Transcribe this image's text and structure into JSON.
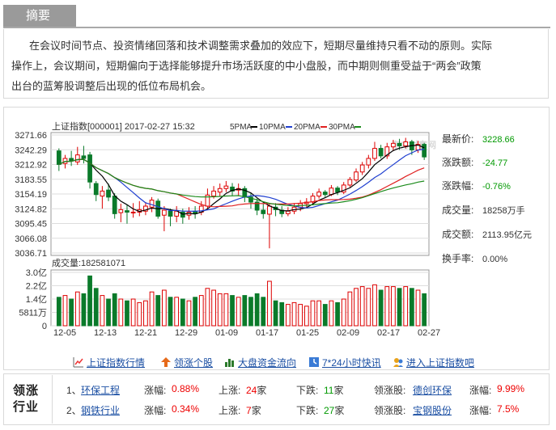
{
  "summary": {
    "tab": "摘要",
    "lines": [
      "在会议时间节点、投资情绪回落和技术调整需求叠加的效应下，短期尽量维持只看不动的原则。实际",
      "操作上，会议期间，短期偏向于选择能够提升市场活跃度的中小盘股，而中期则侧重受益于“两会”政策",
      "出台的蓝筹股调整后出现的低位布局机会。"
    ]
  },
  "chart_header": {
    "title": "上证指数[000001] 2017-02-27 15:32",
    "ma5": "5PMA",
    "ma10": "10PMA",
    "ma20": "20PMA",
    "ma30": "30PMA",
    "watermark": "东方财富网"
  },
  "quote": {
    "latest_label": "最新价:",
    "latest": "3228.66",
    "change_label": "涨跌额:",
    "change": "-24.77",
    "pct_label": "涨跌幅:",
    "pct": "-0.76%",
    "volume_label": "成交量:",
    "volume": "18258万手",
    "amount_label": "成交额:",
    "amount": "2113.95亿元",
    "turnover_label": "换手率:",
    "turnover": "0.00%"
  },
  "volume_label": "成交量:182581071",
  "chart_data": {
    "type": "candlestick",
    "price_axis": [
      "3271.66",
      "3242.29",
      "3212.92",
      "3183.55",
      "3154.19",
      "3124.82",
      "3095.45",
      "3066.08",
      "3036.71"
    ],
    "price_range": [
      3036.71,
      3271.66
    ],
    "volume_axis": [
      "3.0亿",
      "2.2亿",
      "1.4亿",
      "5811万",
      "0"
    ],
    "volume_range": [
      0,
      3.0
    ],
    "dates": [
      "12-05",
      "12-13",
      "12-21",
      "12-29",
      "01-09",
      "01-17",
      "01-25",
      "02-09",
      "02-17",
      "02-27"
    ],
    "candles": [
      [
        3240,
        3213,
        3245,
        3200,
        1.6
      ],
      [
        3215,
        3225,
        3232,
        3205,
        1.7
      ],
      [
        3225,
        3220,
        3240,
        3210,
        1.5
      ],
      [
        3218,
        3232,
        3248,
        3212,
        1.9
      ],
      [
        3230,
        3225,
        3250,
        3215,
        1.8
      ],
      [
        3232,
        3178,
        3238,
        3165,
        2.8
      ],
      [
        3175,
        3153,
        3180,
        3140,
        2.1
      ],
      [
        3150,
        3160,
        3170,
        3125,
        1.7
      ],
      [
        3162,
        3148,
        3175,
        3140,
        1.5
      ],
      [
        3150,
        3115,
        3156,
        3105,
        1.8
      ],
      [
        3117,
        3123,
        3135,
        3098,
        1.5
      ],
      [
        3121,
        3118,
        3132,
        3095,
        1.4
      ],
      [
        3118,
        3118,
        3136,
        3107,
        1.5
      ],
      [
        3118,
        3123,
        3140,
        3110,
        1.3
      ],
      [
        3120,
        3130,
        3138,
        3112,
        1.4
      ],
      [
        3128,
        3142,
        3148,
        3118,
        1.9
      ],
      [
        3140,
        3110,
        3145,
        3105,
        1.7
      ],
      [
        3112,
        3122,
        3130,
        3080,
        2.0
      ],
      [
        3120,
        3110,
        3125,
        3090,
        1.6
      ],
      [
        3110,
        3120,
        3130,
        3098,
        1.6
      ],
      [
        3118,
        3108,
        3125,
        3095,
        1.5
      ],
      [
        3112,
        3118,
        3128,
        3103,
        1.4
      ],
      [
        3120,
        3115,
        3130,
        3105,
        1.6
      ],
      [
        3118,
        3130,
        3140,
        3112,
        1.7
      ],
      [
        3130,
        3152,
        3165,
        3125,
        2.1
      ],
      [
        3150,
        3160,
        3170,
        3145,
        2.0
      ],
      [
        3158,
        3165,
        3175,
        3150,
        1.8
      ],
      [
        3165,
        3170,
        3180,
        3158,
        1.8
      ],
      [
        3168,
        3160,
        3176,
        3150,
        1.7
      ],
      [
        3162,
        3165,
        3175,
        3150,
        1.6
      ],
      [
        3165,
        3148,
        3170,
        3138,
        1.7
      ],
      [
        3148,
        3138,
        3156,
        3125,
        1.6
      ],
      [
        3138,
        3122,
        3145,
        3112,
        1.8
      ],
      [
        3122,
        3115,
        3135,
        3105,
        1.6
      ],
      [
        3114,
        3130,
        3136,
        3046,
        2.5
      ],
      [
        3128,
        3123,
        3136,
        3110,
        1.4
      ],
      [
        3122,
        3115,
        3130,
        3108,
        1.3
      ],
      [
        3115,
        3120,
        3128,
        3110,
        1.2
      ],
      [
        3120,
        3128,
        3136,
        3114,
        1.3
      ],
      [
        3128,
        3135,
        3142,
        3120,
        1.2
      ],
      [
        3135,
        3138,
        3146,
        3128,
        1.1
      ],
      [
        3138,
        3150,
        3156,
        3132,
        1.4
      ],
      [
        3150,
        3158,
        3165,
        3145,
        1.4
      ],
      [
        3158,
        3153,
        3162,
        3148,
        1.2
      ],
      [
        3153,
        3166,
        3172,
        3150,
        1.4
      ],
      [
        3166,
        3158,
        3170,
        3152,
        1.3
      ],
      [
        3158,
        3172,
        3178,
        3154,
        1.5
      ],
      [
        3172,
        3183,
        3188,
        3168,
        1.9
      ],
      [
        3182,
        3198,
        3205,
        3178,
        2.1
      ],
      [
        3198,
        3212,
        3218,
        3192,
        2.2
      ],
      [
        3212,
        3225,
        3232,
        3205,
        2.1
      ],
      [
        3225,
        3245,
        3258,
        3220,
        2.3
      ],
      [
        3245,
        3230,
        3252,
        3225,
        2.0
      ],
      [
        3230,
        3248,
        3256,
        3224,
        2.2
      ],
      [
        3248,
        3255,
        3262,
        3240,
        2.2
      ],
      [
        3255,
        3250,
        3264,
        3242,
        2.1
      ],
      [
        3250,
        3258,
        3266,
        3245,
        2.2
      ],
      [
        3258,
        3242,
        3262,
        3232,
        2.1
      ],
      [
        3242,
        3253,
        3260,
        3236,
        2.0
      ],
      [
        3253,
        3228,
        3256,
        3222,
        1.8
      ]
    ],
    "series": [
      {
        "name": "5PMA",
        "color": "#000000"
      },
      {
        "name": "10PMA",
        "color": "#1f3fd0"
      },
      {
        "name": "20PMA",
        "color": "#e02020"
      },
      {
        "name": "30PMA",
        "color": "#1a8a1a"
      }
    ]
  },
  "links": [
    {
      "icon": "line-chart-icon",
      "label": "上证指数行情"
    },
    {
      "icon": "up-arrow-icon",
      "label": "领涨个股"
    },
    {
      "icon": "bar-chart-icon",
      "label": "大盘资金流向"
    },
    {
      "icon": "clock-icon",
      "label": "7*24小时快讯"
    },
    {
      "icon": "people-icon",
      "label": "进入上证指数吧"
    }
  ],
  "sectors": {
    "title": "领涨行业",
    "rows": [
      {
        "idx": "1、",
        "name": "环保工程",
        "pct_label": "涨幅:",
        "pct": "0.88%",
        "up_label": "上涨:",
        "up": "24",
        "up_unit": "家",
        "down_label": "下跌:",
        "down": "11",
        "down_unit": "家",
        "lead_label": "领涨股:",
        "lead": "德创环保",
        "lead_pct_label": "涨幅:",
        "lead_pct": "9.99%"
      },
      {
        "idx": "2、",
        "name": "钢铁行业",
        "pct_label": "涨幅:",
        "pct": "0.34%",
        "up_label": "上涨:",
        "up": "7",
        "up_unit": "家",
        "down_label": "下跌:",
        "down": "27",
        "down_unit": "家",
        "lead_label": "领涨股:",
        "lead": "宝钢股份",
        "lead_pct_label": "涨幅:",
        "lead_pct": "7.5%"
      }
    ]
  }
}
